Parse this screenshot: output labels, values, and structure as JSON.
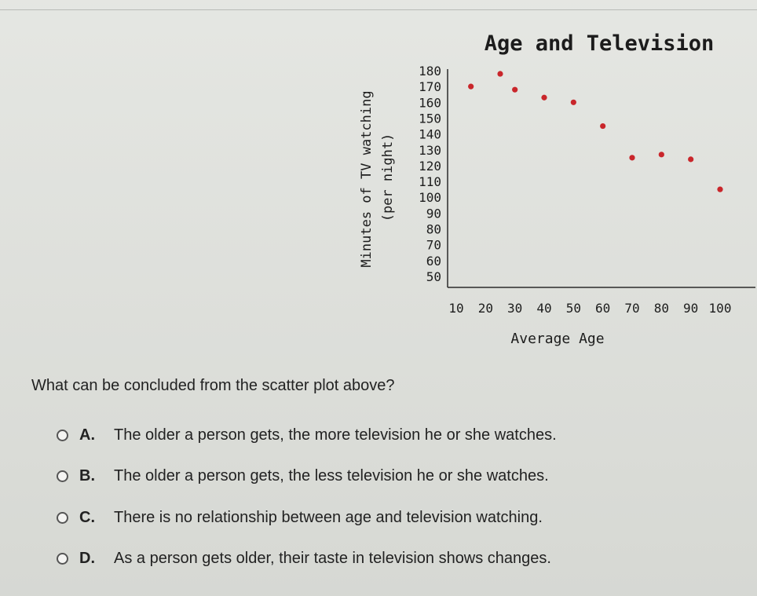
{
  "chart_data": {
    "type": "scatter",
    "title": "Age and Television",
    "xlabel": "Average Age",
    "ylabel": "Minutes of TV watching",
    "ylabel2": "(per night)",
    "x_ticks": [
      10,
      20,
      30,
      40,
      50,
      60,
      70,
      80,
      90,
      100
    ],
    "y_ticks": [
      50,
      60,
      70,
      80,
      90,
      100,
      110,
      120,
      130,
      140,
      150,
      160,
      170,
      180
    ],
    "xlim": [
      5,
      105
    ],
    "ylim": [
      45,
      185
    ],
    "grid": false,
    "series": [
      {
        "x": [
          15,
          25,
          30,
          40,
          50,
          60,
          70,
          80,
          90,
          100
        ],
        "y": [
          170,
          178,
          168,
          163,
          160,
          145,
          125,
          127,
          124,
          105
        ]
      }
    ],
    "colors": {
      "points": "#c9262b",
      "axis": "#2b2b2b",
      "text": "#1c1c1c"
    }
  },
  "question": {
    "prompt": "What can be concluded from the scatter plot above?",
    "options": [
      {
        "letter": "A.",
        "text": "The older a person gets, the more television he or she watches."
      },
      {
        "letter": "B.",
        "text": "The older a person gets, the less television he or she watches."
      },
      {
        "letter": "C.",
        "text": "There is no relationship between age and television watching."
      },
      {
        "letter": "D.",
        "text": "As a person gets older, their taste in television shows changes."
      }
    ]
  }
}
